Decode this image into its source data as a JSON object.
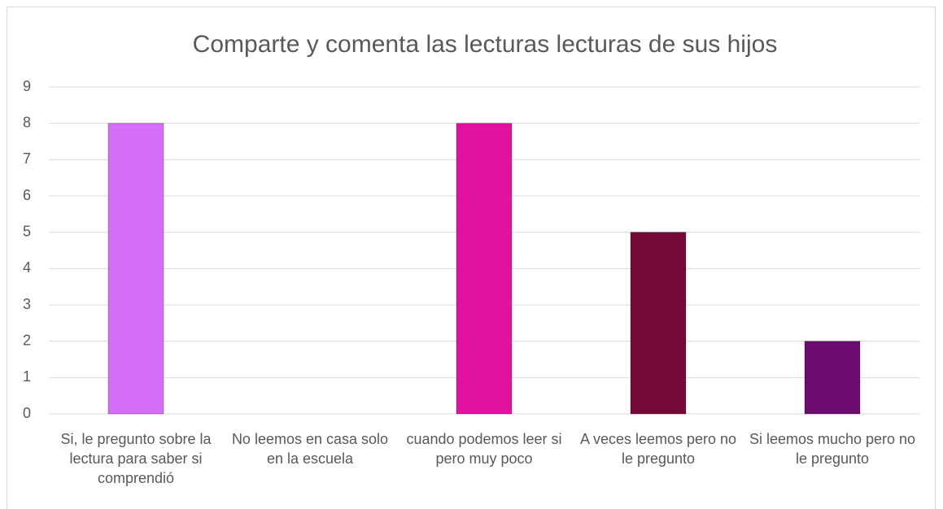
{
  "chart_data": {
    "type": "bar",
    "title": "Comparte y comenta las lecturas lecturas de sus hijos",
    "categories": [
      "Si, le pregunto sobre la lectura para saber si comprendió",
      "No leemos en casa solo en la escuela",
      "cuando podemos leer si pero muy poco",
      "A veces leemos pero no le pregunto",
      "Si leemos mucho pero no le pregunto"
    ],
    "values": [
      8,
      0,
      8,
      5,
      2
    ],
    "colors": [
      "#d56ef7",
      "#a0209f",
      "#e0129f",
      "#750a38",
      "#6c0c6e"
    ],
    "ylim": [
      0,
      9
    ],
    "yticks": [
      0,
      1,
      2,
      3,
      4,
      5,
      6,
      7,
      8,
      9
    ],
    "grid": true
  }
}
